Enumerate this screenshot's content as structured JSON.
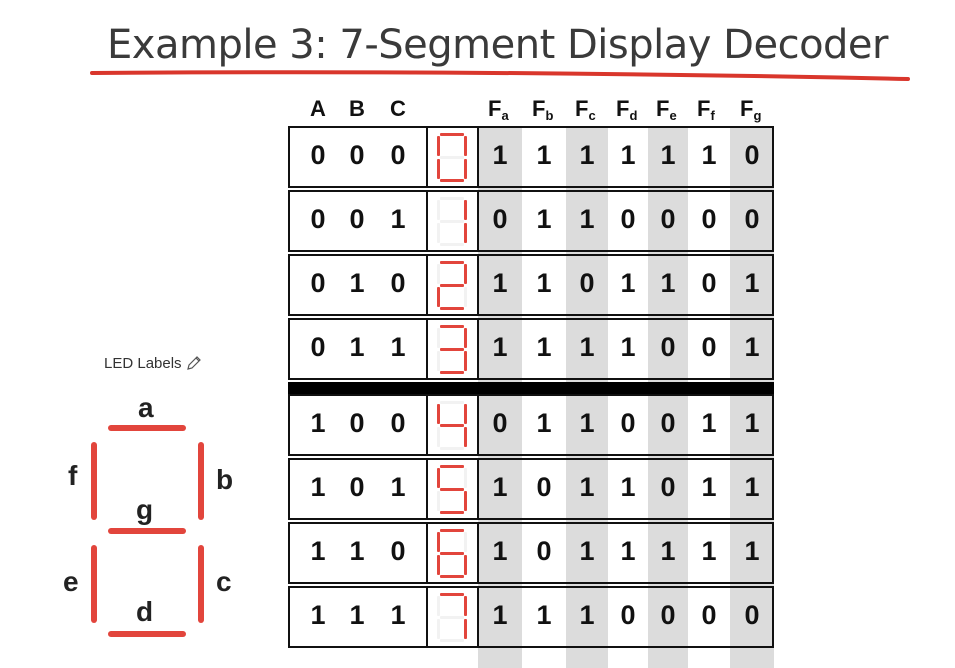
{
  "title": "Example 3: 7-Segment Display Decoder",
  "led_labels": {
    "caption": "LED Labels",
    "segments": [
      "a",
      "b",
      "c",
      "d",
      "e",
      "f",
      "g"
    ]
  },
  "table": {
    "input_headers": [
      "A",
      "B",
      "C"
    ],
    "output_headers": [
      {
        "base": "F",
        "sub": "a"
      },
      {
        "base": "F",
        "sub": "b"
      },
      {
        "base": "F",
        "sub": "c"
      },
      {
        "base": "F",
        "sub": "d"
      },
      {
        "base": "F",
        "sub": "e"
      },
      {
        "base": "F",
        "sub": "f"
      },
      {
        "base": "F",
        "sub": "g"
      }
    ],
    "rows": [
      {
        "inputs": [
          "0",
          "0",
          "0"
        ],
        "outputs": [
          "1",
          "1",
          "1",
          "1",
          "1",
          "1",
          "0"
        ]
      },
      {
        "inputs": [
          "0",
          "0",
          "1"
        ],
        "outputs": [
          "0",
          "1",
          "1",
          "0",
          "0",
          "0",
          "0"
        ]
      },
      {
        "inputs": [
          "0",
          "1",
          "0"
        ],
        "outputs": [
          "1",
          "1",
          "0",
          "1",
          "1",
          "0",
          "1"
        ]
      },
      {
        "inputs": [
          "0",
          "1",
          "1"
        ],
        "outputs": [
          "1",
          "1",
          "1",
          "1",
          "0",
          "0",
          "1"
        ]
      },
      {
        "inputs": [
          "1",
          "0",
          "0"
        ],
        "outputs": [
          "0",
          "1",
          "1",
          "0",
          "0",
          "1",
          "1"
        ]
      },
      {
        "inputs": [
          "1",
          "0",
          "1"
        ],
        "outputs": [
          "1",
          "0",
          "1",
          "1",
          "0",
          "1",
          "1"
        ]
      },
      {
        "inputs": [
          "1",
          "1",
          "0"
        ],
        "outputs": [
          "1",
          "0",
          "1",
          "1",
          "1",
          "1",
          "1"
        ]
      },
      {
        "inputs": [
          "1",
          "1",
          "1"
        ],
        "outputs": [
          "1",
          "1",
          "1",
          "0",
          "0",
          "0",
          "0"
        ]
      }
    ]
  },
  "colors": {
    "segment_on": "#e2453c",
    "segment_off": "#f2f2f2",
    "shade": "#dcdcdc",
    "underline": "#d9362c"
  }
}
